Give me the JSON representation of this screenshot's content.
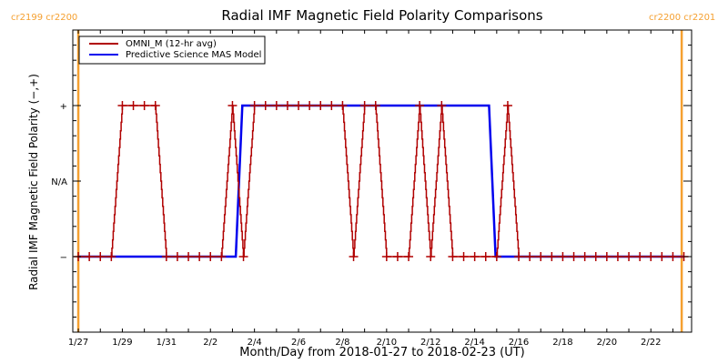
{
  "chart_data": {
    "type": "line",
    "title": "Radial IMF Magnetic Field Polarity Comparisons",
    "xlabel": "Month/Day from 2018-01-27 to 2018-02-23 (UT)",
    "ylabel": "Radial IMF Magnetic Field Polarity (−,+)",
    "x_unit": "days since 2018-01-27 00:00 UT",
    "xlim": [
      -0.25,
      27.85
    ],
    "ylim": [
      -2.0,
      2.0
    ],
    "x_ticks": [
      {
        "value": 0,
        "label": "1/27"
      },
      {
        "value": 2,
        "label": "1/29"
      },
      {
        "value": 4,
        "label": "1/31"
      },
      {
        "value": 6,
        "label": "2/2"
      },
      {
        "value": 8,
        "label": "2/4"
      },
      {
        "value": 10,
        "label": "2/6"
      },
      {
        "value": 12,
        "label": "2/8"
      },
      {
        "value": 14,
        "label": "2/10"
      },
      {
        "value": 16,
        "label": "2/12"
      },
      {
        "value": 18,
        "label": "2/14"
      },
      {
        "value": 20,
        "label": "2/16"
      },
      {
        "value": 22,
        "label": "2/18"
      },
      {
        "value": 24,
        "label": "2/20"
      },
      {
        "value": 26,
        "label": "2/22"
      }
    ],
    "y_ticks": [
      {
        "value": 1,
        "label": "+"
      },
      {
        "value": 0,
        "label": "N/A"
      },
      {
        "value": -1,
        "label": "−"
      }
    ],
    "carrington_markers": [
      {
        "value": 0.0,
        "label": "cr2199 cr2200",
        "side": "left"
      },
      {
        "value": 27.4,
        "label": "cr2200 cr2201",
        "side": "right"
      }
    ],
    "legend": {
      "position": "top-left",
      "entries": [
        {
          "name": "OMNI_M (12-hr avg)",
          "color": "#b00000"
        },
        {
          "name": "Predictive Science MAS Model",
          "color": "#0000ee"
        }
      ]
    },
    "series": [
      {
        "name": "OMNI_M (12-hr avg)",
        "color": "#b00000",
        "marker": "plus",
        "x_step_days": 0.5,
        "x_start": 0,
        "values": [
          -1,
          -1,
          -1,
          -1,
          1,
          1,
          1,
          1,
          -1,
          -1,
          -1,
          -1,
          -1,
          -1,
          1,
          -1,
          1,
          1,
          1,
          1,
          1,
          1,
          1,
          1,
          1,
          -1,
          1,
          1,
          -1,
          -1,
          -1,
          1,
          -1,
          1,
          -1,
          -1,
          -1,
          -1,
          -1,
          1,
          -1,
          -1,
          -1,
          -1,
          -1,
          -1,
          -1,
          -1,
          -1,
          -1,
          -1,
          -1,
          -1,
          -1,
          -1,
          -1
        ]
      },
      {
        "name": "Predictive Science MAS Model",
        "color": "#0000ee",
        "x": [
          0,
          7.15,
          7.3,
          7.45,
          18.65,
          18.8,
          18.95,
          27.5
        ],
        "values": [
          -1,
          -1,
          0,
          1,
          1,
          0,
          -1,
          -1
        ]
      }
    ],
    "colors": {
      "carrington": "#f5a030",
      "axes": "#000000"
    }
  }
}
